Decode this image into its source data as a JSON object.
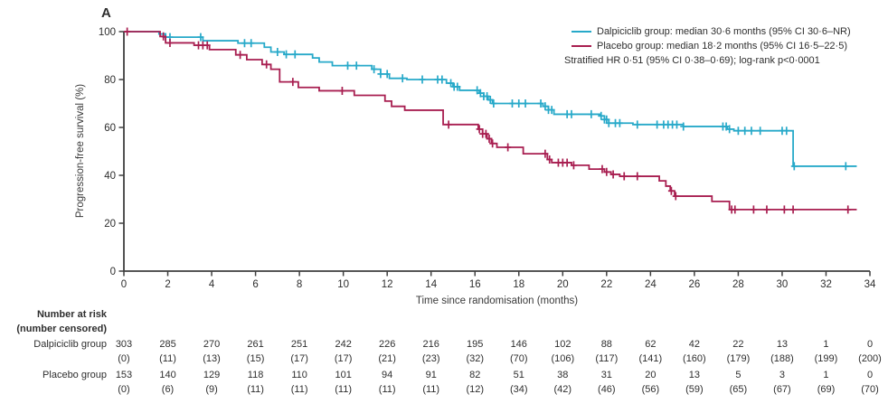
{
  "panel_label": "A",
  "colors": {
    "dalpiciclib": "#27a9c9",
    "placebo": "#a81e50",
    "axis": "#3f3f3f",
    "text": "#2e2e2e"
  },
  "legend": {
    "dalpiciclib_label": "Dalpiciclib group: median 30·6 months (95% CI 30·6–NR)",
    "placebo_label": "Placebo group: median 18·2 months (95% CI 16·5–22·5)",
    "stratified_line": "Stratified HR 0·51 (95% CI 0·38–0·69); log-rank p<0·0001"
  },
  "chart_data": {
    "type": "line",
    "subtype": "kaplan-meier-step",
    "title": "",
    "xlabel": "Time since randomisation (months)",
    "ylabel": "Progression-free survival (%)",
    "xlim": [
      0,
      34
    ],
    "ylim": [
      0,
      100
    ],
    "xticks": [
      0,
      2,
      4,
      6,
      8,
      10,
      12,
      14,
      16,
      18,
      20,
      22,
      24,
      26,
      28,
      30,
      32,
      34
    ],
    "yticks": [
      0,
      20,
      40,
      60,
      80,
      100
    ],
    "grid": false,
    "legend_position": "top-right",
    "series": [
      {
        "name": "Dalpiciclib group",
        "color": "#27a9c9",
        "end_time": 33.4,
        "steps": [
          [
            0,
            100
          ],
          [
            1.6,
            99
          ],
          [
            1.9,
            97.7
          ],
          [
            3.6,
            96.2
          ],
          [
            5.2,
            95.2
          ],
          [
            6.4,
            93.5
          ],
          [
            6.7,
            91.5
          ],
          [
            7.3,
            90.5
          ],
          [
            8.6,
            89
          ],
          [
            8.9,
            87.3
          ],
          [
            9.5,
            85.8
          ],
          [
            11.3,
            84.3
          ],
          [
            11.7,
            82.3
          ],
          [
            12.1,
            80.5
          ],
          [
            12.9,
            80
          ],
          [
            14.7,
            78.5
          ],
          [
            15.0,
            77
          ],
          [
            15.3,
            75.5
          ],
          [
            16.2,
            74.3
          ],
          [
            16.4,
            73
          ],
          [
            16.6,
            71.5
          ],
          [
            16.8,
            70
          ],
          [
            19.1,
            68.8
          ],
          [
            19.35,
            67.3
          ],
          [
            19.6,
            65.5
          ],
          [
            21.7,
            64.8
          ],
          [
            21.9,
            63.3
          ],
          [
            22.1,
            61.8
          ],
          [
            23.2,
            61.2
          ],
          [
            25.5,
            60.4
          ],
          [
            27.5,
            59.3
          ],
          [
            27.8,
            58.6
          ],
          [
            30.5,
            43.8
          ]
        ],
        "censor_times": [
          1.9,
          2.1,
          3.5,
          5.5,
          5.8,
          7.0,
          7.4,
          7.8,
          10.2,
          10.6,
          11.4,
          11.7,
          12.0,
          12.7,
          13.6,
          14.3,
          14.5,
          14.9,
          15.05,
          15.2,
          16.1,
          16.25,
          16.4,
          16.55,
          16.7,
          16.85,
          17.7,
          18.0,
          18.3,
          19.0,
          19.2,
          19.35,
          19.5,
          20.2,
          20.4,
          21.3,
          21.75,
          21.9,
          22.0,
          22.1,
          22.4,
          22.6,
          23.4,
          24.3,
          24.6,
          24.8,
          25.0,
          25.2,
          25.5,
          27.3,
          27.45,
          27.6,
          28.0,
          28.3,
          28.6,
          29.0,
          30.0,
          30.2,
          30.55,
          32.9
        ]
      },
      {
        "name": "Placebo group",
        "color": "#a81e50",
        "end_time": 33.4,
        "steps": [
          [
            0,
            100
          ],
          [
            1.65,
            98
          ],
          [
            1.9,
            95.3
          ],
          [
            3.2,
            94.3
          ],
          [
            3.9,
            92.5
          ],
          [
            5.1,
            90.3
          ],
          [
            5.6,
            88.3
          ],
          [
            6.3,
            86.3
          ],
          [
            6.7,
            84.3
          ],
          [
            7.1,
            79
          ],
          [
            7.95,
            76.7
          ],
          [
            8.9,
            75.3
          ],
          [
            10.5,
            73.4
          ],
          [
            11.9,
            71
          ],
          [
            12.2,
            68.8
          ],
          [
            12.8,
            67.2
          ],
          [
            14.55,
            61.2
          ],
          [
            16.15,
            59.3
          ],
          [
            16.35,
            57.3
          ],
          [
            16.55,
            55.3
          ],
          [
            16.75,
            53.3
          ],
          [
            17.0,
            51.7
          ],
          [
            18.2,
            49
          ],
          [
            19.3,
            46.6
          ],
          [
            19.5,
            45.3
          ],
          [
            20.4,
            44.2
          ],
          [
            21.2,
            42.6
          ],
          [
            21.9,
            41.4
          ],
          [
            22.2,
            40.4
          ],
          [
            22.6,
            39.6
          ],
          [
            24.4,
            37.7
          ],
          [
            24.7,
            35.5
          ],
          [
            24.9,
            33.5
          ],
          [
            25.1,
            31.3
          ],
          [
            26.8,
            29.1
          ],
          [
            27.6,
            25.7
          ]
        ],
        "censor_times": [
          0.15,
          1.8,
          2.1,
          3.4,
          3.6,
          3.8,
          5.3,
          6.5,
          7.7,
          9.95,
          14.8,
          16.2,
          16.35,
          16.5,
          16.65,
          16.8,
          17.5,
          19.2,
          19.4,
          19.8,
          20.0,
          20.2,
          20.5,
          21.8,
          22.0,
          22.3,
          22.8,
          23.4,
          24.95,
          25.15,
          27.7,
          27.85,
          28.7,
          29.3,
          30.1,
          30.5,
          33.0
        ]
      }
    ]
  },
  "risk_table": {
    "header_line1": "Number at risk",
    "header_line2": "(number censored)",
    "rows": [
      {
        "label": "Dalpiciclib group",
        "at_risk": [
          "303",
          "285",
          "270",
          "261",
          "251",
          "242",
          "226",
          "216",
          "195",
          "146",
          "102",
          "88",
          "62",
          "42",
          "22",
          "13",
          "1",
          "0"
        ],
        "censored": [
          "(0)",
          "(11)",
          "(13)",
          "(15)",
          "(17)",
          "(17)",
          "(21)",
          "(23)",
          "(32)",
          "(70)",
          "(106)",
          "(117)",
          "(141)",
          "(160)",
          "(179)",
          "(188)",
          "(199)",
          "(200)"
        ]
      },
      {
        "label": "Placebo group",
        "at_risk": [
          "153",
          "140",
          "129",
          "118",
          "110",
          "101",
          "94",
          "91",
          "82",
          "51",
          "38",
          "31",
          "20",
          "13",
          "5",
          "3",
          "1",
          "0"
        ],
        "censored": [
          "(0)",
          "(6)",
          "(9)",
          "(11)",
          "(11)",
          "(11)",
          "(11)",
          "(11)",
          "(12)",
          "(34)",
          "(42)",
          "(46)",
          "(56)",
          "(59)",
          "(65)",
          "(67)",
          "(69)",
          "(70)"
        ]
      }
    ]
  }
}
